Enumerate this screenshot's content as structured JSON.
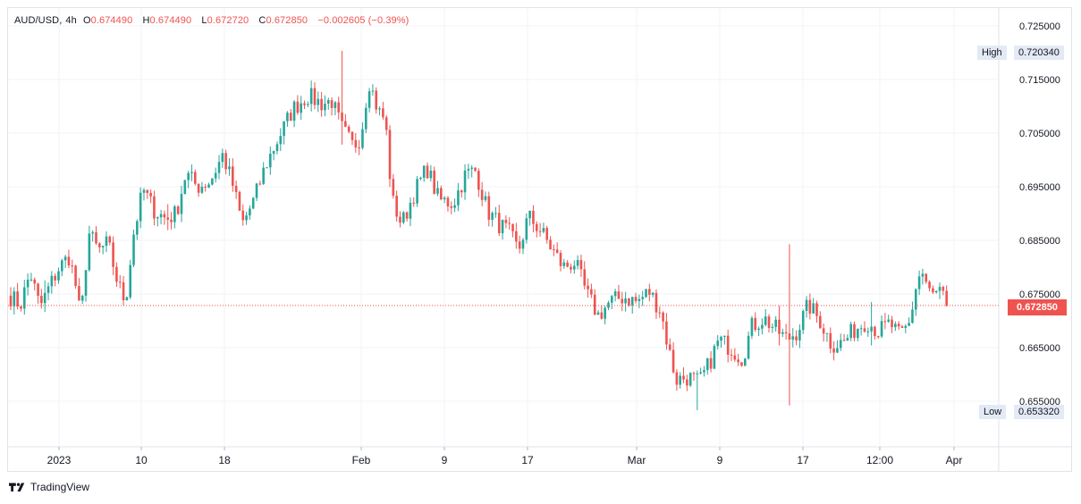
{
  "legend": {
    "symbol": "AUD/USD",
    "separator": ",",
    "interval": "4h",
    "o_label": "O",
    "open": "0.674490",
    "h_label": "H",
    "high": "0.674490",
    "l_label": "L",
    "low": "0.672720",
    "c_label": "C",
    "close": "0.672850",
    "change": "−0.002605 (−0.39%)"
  },
  "high_marker": {
    "label": "High",
    "value": "0.720340"
  },
  "low_marker": {
    "label": "Low",
    "value": "0.653320"
  },
  "last_price": "0.672850",
  "footer": {
    "brand": "TradingView"
  },
  "colors": {
    "up": "#26a69a",
    "down": "#ef5350",
    "grid": "#f0f3fa",
    "axis_text": "#131722",
    "price_line": "#ef5350"
  },
  "chart_data": {
    "type": "candlestick",
    "symbol": "AUD/USD",
    "interval": "4h",
    "y_ticks": [
      "0.725000",
      "0.715000",
      "0.705000",
      "0.695000",
      "0.685000",
      "0.675000",
      "0.665000",
      "0.655000"
    ],
    "x_ticks": [
      "2023",
      "10",
      "18",
      "Feb",
      "9",
      "17",
      "Mar",
      "9",
      "17",
      "12:00",
      "Apr"
    ],
    "ylim": [
      0.6505,
      0.7275
    ],
    "grid": true,
    "high": 0.72034,
    "low": 0.65332,
    "last": 0.67285,
    "close_path": [
      {
        "t": 0.0,
        "v": 0.6745
      },
      {
        "t": 0.01,
        "v": 0.673
      },
      {
        "t": 0.02,
        "v": 0.679
      },
      {
        "t": 0.03,
        "v": 0.6725
      },
      {
        "t": 0.04,
        "v": 0.6765
      },
      {
        "t": 0.05,
        "v": 0.68
      },
      {
        "t": 0.06,
        "v": 0.682
      },
      {
        "t": 0.066,
        "v": 0.6775
      },
      {
        "t": 0.072,
        "v": 0.67
      },
      {
        "t": 0.08,
        "v": 0.6865
      },
      {
        "t": 0.09,
        "v": 0.683
      },
      {
        "t": 0.1,
        "v": 0.6845
      },
      {
        "t": 0.11,
        "v": 0.677
      },
      {
        "t": 0.118,
        "v": 0.6735
      },
      {
        "t": 0.126,
        "v": 0.686
      },
      {
        "t": 0.136,
        "v": 0.6945
      },
      {
        "t": 0.148,
        "v": 0.6905
      },
      {
        "t": 0.16,
        "v": 0.689
      },
      {
        "t": 0.17,
        "v": 0.69
      },
      {
        "t": 0.18,
        "v": 0.6975
      },
      {
        "t": 0.192,
        "v": 0.695
      },
      {
        "t": 0.205,
        "v": 0.696
      },
      {
        "t": 0.218,
        "v": 0.701
      },
      {
        "t": 0.228,
        "v": 0.6955
      },
      {
        "t": 0.238,
        "v": 0.688
      },
      {
        "t": 0.25,
        "v": 0.6925
      },
      {
        "t": 0.262,
        "v": 0.699
      },
      {
        "t": 0.275,
        "v": 0.704
      },
      {
        "t": 0.29,
        "v": 0.7095
      },
      {
        "t": 0.305,
        "v": 0.712
      },
      {
        "t": 0.32,
        "v": 0.7105
      },
      {
        "t": 0.33,
        "v": 0.711
      },
      {
        "t": 0.34,
        "v": 0.706
      },
      {
        "t": 0.352,
        "v": 0.7025
      },
      {
        "t": 0.36,
        "v": 0.7045
      },
      {
        "t": 0.368,
        "v": 0.715
      },
      {
        "t": 0.378,
        "v": 0.709
      },
      {
        "t": 0.385,
        "v": 0.7075
      },
      {
        "t": 0.392,
        "v": 0.6925
      },
      {
        "t": 0.402,
        "v": 0.688
      },
      {
        "t": 0.415,
        "v": 0.694
      },
      {
        "t": 0.428,
        "v": 0.6985
      },
      {
        "t": 0.44,
        "v": 0.6925
      },
      {
        "t": 0.455,
        "v": 0.692
      },
      {
        "t": 0.468,
        "v": 0.6975
      },
      {
        "t": 0.478,
        "v": 0.698
      },
      {
        "t": 0.49,
        "v": 0.6905
      },
      {
        "t": 0.502,
        "v": 0.688
      },
      {
        "t": 0.512,
        "v": 0.6865
      },
      {
        "t": 0.522,
        "v": 0.683
      },
      {
        "t": 0.532,
        "v": 0.6895
      },
      {
        "t": 0.544,
        "v": 0.687
      },
      {
        "t": 0.556,
        "v": 0.6835
      },
      {
        "t": 0.568,
        "v": 0.68
      },
      {
        "t": 0.58,
        "v": 0.681
      },
      {
        "t": 0.592,
        "v": 0.675
      },
      {
        "t": 0.604,
        "v": 0.671
      },
      {
        "t": 0.616,
        "v": 0.6735
      },
      {
        "t": 0.63,
        "v": 0.6745
      },
      {
        "t": 0.644,
        "v": 0.6735
      },
      {
        "t": 0.656,
        "v": 0.6755
      },
      {
        "t": 0.668,
        "v": 0.672
      },
      {
        "t": 0.676,
        "v": 0.665
      },
      {
        "t": 0.684,
        "v": 0.659
      },
      {
        "t": 0.696,
        "v": 0.6595
      },
      {
        "t": 0.708,
        "v": 0.6585
      },
      {
        "t": 0.718,
        "v": 0.662
      },
      {
        "t": 0.728,
        "v": 0.6665
      },
      {
        "t": 0.74,
        "v": 0.665
      },
      {
        "t": 0.752,
        "v": 0.663
      },
      {
        "t": 0.762,
        "v": 0.669
      },
      {
        "t": 0.774,
        "v": 0.6705
      },
      {
        "t": 0.786,
        "v": 0.6685
      },
      {
        "t": 0.798,
        "v": 0.6665
      },
      {
        "t": 0.808,
        "v": 0.668
      },
      {
        "t": 0.82,
        "v": 0.673
      },
      {
        "t": 0.832,
        "v": 0.67
      },
      {
        "t": 0.844,
        "v": 0.6655
      },
      {
        "t": 0.856,
        "v": 0.666
      },
      {
        "t": 0.868,
        "v": 0.6685
      },
      {
        "t": 0.88,
        "v": 0.67
      },
      {
        "t": 0.892,
        "v": 0.668
      },
      {
        "t": 0.904,
        "v": 0.6695
      },
      {
        "t": 0.914,
        "v": 0.667
      },
      {
        "t": 0.924,
        "v": 0.6695
      },
      {
        "t": 0.93,
        "v": 0.676
      },
      {
        "t": 0.936,
        "v": 0.6795
      },
      {
        "t": 0.946,
        "v": 0.6745
      },
      {
        "t": 0.955,
        "v": 0.6755
      },
      {
        "t": 0.962,
        "v": 0.6729
      }
    ]
  }
}
